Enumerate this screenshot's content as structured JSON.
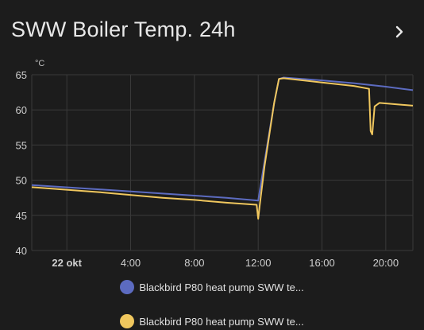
{
  "card": {
    "title": "SWW Boiler Temp. 24h"
  },
  "legend": [
    {
      "label": "Blackbird P80 heat pump SWW te...",
      "color": "#5c6bc0"
    },
    {
      "label": "Blackbird P80 heat pump SWW te...",
      "color": "#f0c75e"
    }
  ],
  "chart_data": {
    "type": "line",
    "unit": "°C",
    "ylim": [
      40,
      65
    ],
    "yticks": [
      "65",
      "60",
      "55",
      "50",
      "45",
      "40"
    ],
    "xticks": [
      {
        "label": "22 okt",
        "bold": true
      },
      {
        "label": "4:00",
        "bold": false
      },
      {
        "label": "8:00",
        "bold": false
      },
      {
        "label": "12:00",
        "bold": false
      },
      {
        "label": "16:00",
        "bold": false
      },
      {
        "label": "20:00",
        "bold": false
      }
    ],
    "grid": true,
    "series": [
      {
        "color": "#5c6bc0",
        "points": [
          [
            -2.2,
            49.3
          ],
          [
            2,
            48.7
          ],
          [
            6,
            48.1
          ],
          [
            8,
            47.8
          ],
          [
            10,
            47.5
          ],
          [
            12,
            47.1
          ],
          [
            12.35,
            52.0
          ],
          [
            13.0,
            61.0
          ],
          [
            13.3,
            64.4
          ],
          [
            13.6,
            64.6
          ],
          [
            16,
            64.2
          ],
          [
            18,
            63.8
          ],
          [
            20,
            63.3
          ],
          [
            21.7,
            62.8
          ]
        ]
      },
      {
        "color": "#f0c75e",
        "points": [
          [
            -2.2,
            49.0
          ],
          [
            2,
            48.3
          ],
          [
            6,
            47.5
          ],
          [
            8,
            47.2
          ],
          [
            10,
            46.8
          ],
          [
            11.9,
            46.5
          ],
          [
            12.0,
            44.5
          ],
          [
            12.1,
            46.5
          ],
          [
            12.4,
            52.0
          ],
          [
            13.0,
            61.0
          ],
          [
            13.3,
            64.4
          ],
          [
            13.6,
            64.5
          ],
          [
            16,
            63.9
          ],
          [
            18,
            63.4
          ],
          [
            18.95,
            63.0
          ],
          [
            19.05,
            57.0
          ],
          [
            19.15,
            56.5
          ],
          [
            19.3,
            60.5
          ],
          [
            19.6,
            61.0
          ],
          [
            21.7,
            60.6
          ]
        ]
      }
    ]
  }
}
